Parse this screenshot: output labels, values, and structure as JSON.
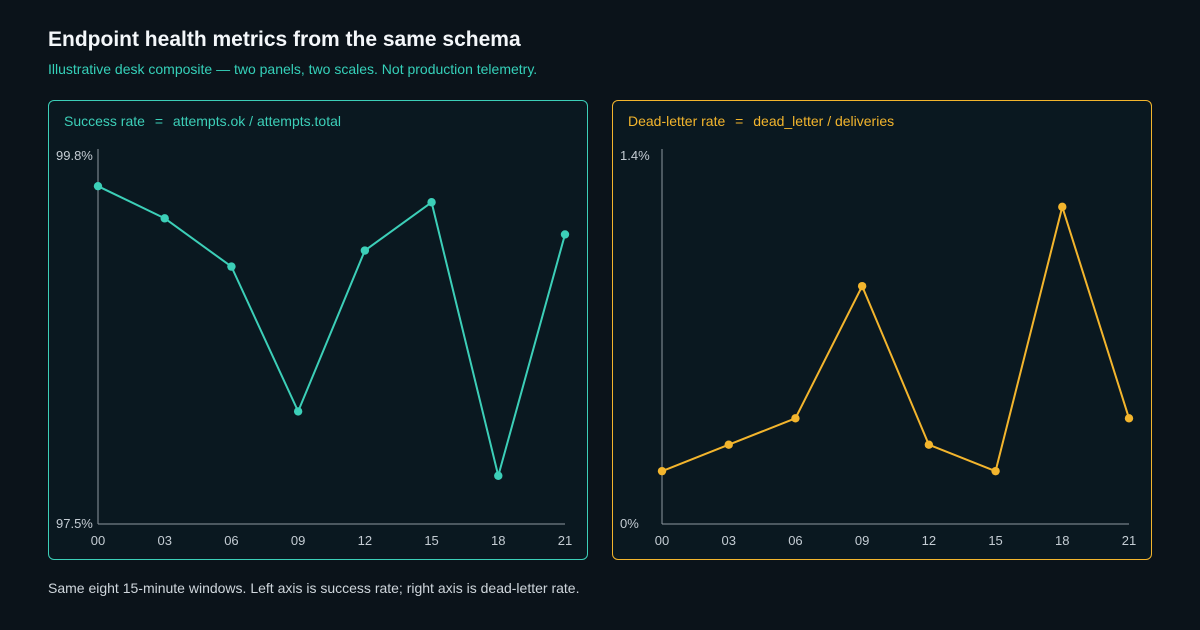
{
  "header": {
    "title": "Endpoint health metrics from the same schema",
    "subtitle": "Illustrative desk composite — two panels, two scales. Not production telemetry."
  },
  "footer": {
    "note": "Same eight 15-minute windows. Left axis is success rate; right axis is dead-letter rate."
  },
  "chart_data": [
    {
      "type": "line",
      "label_name": "Success rate",
      "label_eq": "=",
      "label_formula": "attempts.ok / attempts.total",
      "color": "#3ccfb8",
      "categories": [
        "00",
        "03",
        "06",
        "09",
        "12",
        "15",
        "18",
        "21"
      ],
      "series": [
        {
          "values": [
            99.6,
            99.4,
            99.1,
            98.2,
            99.2,
            99.5,
            97.8,
            99.3
          ]
        }
      ],
      "ylim": [
        97.5,
        99.8
      ],
      "ytick_labels": [
        "97.5%",
        "99.8%"
      ],
      "grid": false
    },
    {
      "type": "line",
      "label_name": "Dead-letter rate",
      "label_eq": "=",
      "label_formula": "dead_letter / deliveries",
      "color": "#f3b52d",
      "categories": [
        "00",
        "03",
        "06",
        "09",
        "12",
        "15",
        "18",
        "21"
      ],
      "series": [
        {
          "values": [
            0.2,
            0.3,
            0.4,
            0.9,
            0.3,
            0.2,
            1.2,
            0.4
          ]
        }
      ],
      "ylim": [
        0,
        1.4
      ],
      "ytick_labels": [
        "0%",
        "1.4%"
      ],
      "grid": false
    }
  ]
}
